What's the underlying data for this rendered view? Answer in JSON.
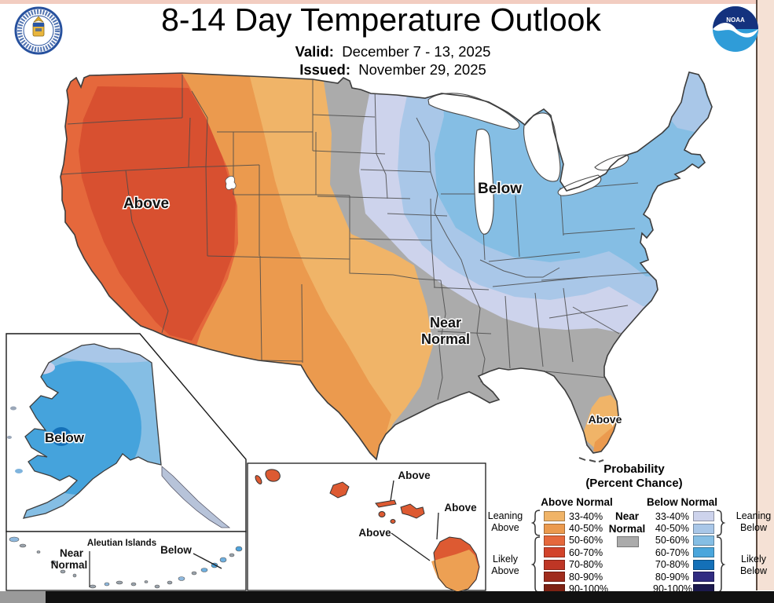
{
  "header": {
    "title": "8-14 Day Temperature Outlook",
    "valid_label": "Valid:",
    "valid_value": "December 7 - 13, 2025",
    "issued_label": "Issued:",
    "issued_value": "November 29, 2025",
    "noaa_logo_text": "NOAA"
  },
  "map_labels": {
    "west_above": "Above",
    "midwest_below": "Below",
    "near_normal_line1": "Near",
    "near_normal_line2": "Normal",
    "florida_above": "Above",
    "alaska_below": "Below",
    "aleutian_title": "Aleutian Islands",
    "aleutian_near_line1": "Near",
    "aleutian_near_line2": "Normal",
    "aleutian_below": "Below",
    "hawaii_above_top": "Above",
    "hawaii_above_right": "Above",
    "hawaii_above_left": "Above"
  },
  "legend": {
    "title_line1": "Probability",
    "title_line2": "(Percent Chance)",
    "above_header": "Above Normal",
    "below_header": "Below Normal",
    "near_line1": "Near",
    "near_line2": "Normal",
    "near_color": "#ABABAB",
    "bins": [
      "33-40%",
      "40-50%",
      "50-60%",
      "60-70%",
      "70-80%",
      "80-90%",
      "90-100%"
    ],
    "above_colors": [
      "#F0B468",
      "#EB9A4E",
      "#E5683C",
      "#D2432A",
      "#BE3625",
      "#A02C1D",
      "#7E2214"
    ],
    "below_colors": [
      "#CDD3EC",
      "#A9C7E8",
      "#85BEE4",
      "#4AA6DC",
      "#1470B8",
      "#312C81",
      "#1C1A4E"
    ],
    "groups": {
      "leaning_above_line1": "Leaning",
      "leaning_above_line2": "Above",
      "likely_above_line1": "Likely",
      "likely_above_line2": "Above",
      "leaning_below_line1": "Leaning",
      "leaning_below_line2": "Below",
      "likely_below_line1": "Likely",
      "likely_below_line2": "Below"
    }
  },
  "map_colors": {
    "near_normal_gray": "#ABABAB",
    "above_core": "#D85030",
    "alaska_base": "#85BEE4",
    "alaska_mid": "#45A3DC",
    "alaska_core": "#1470B8"
  }
}
